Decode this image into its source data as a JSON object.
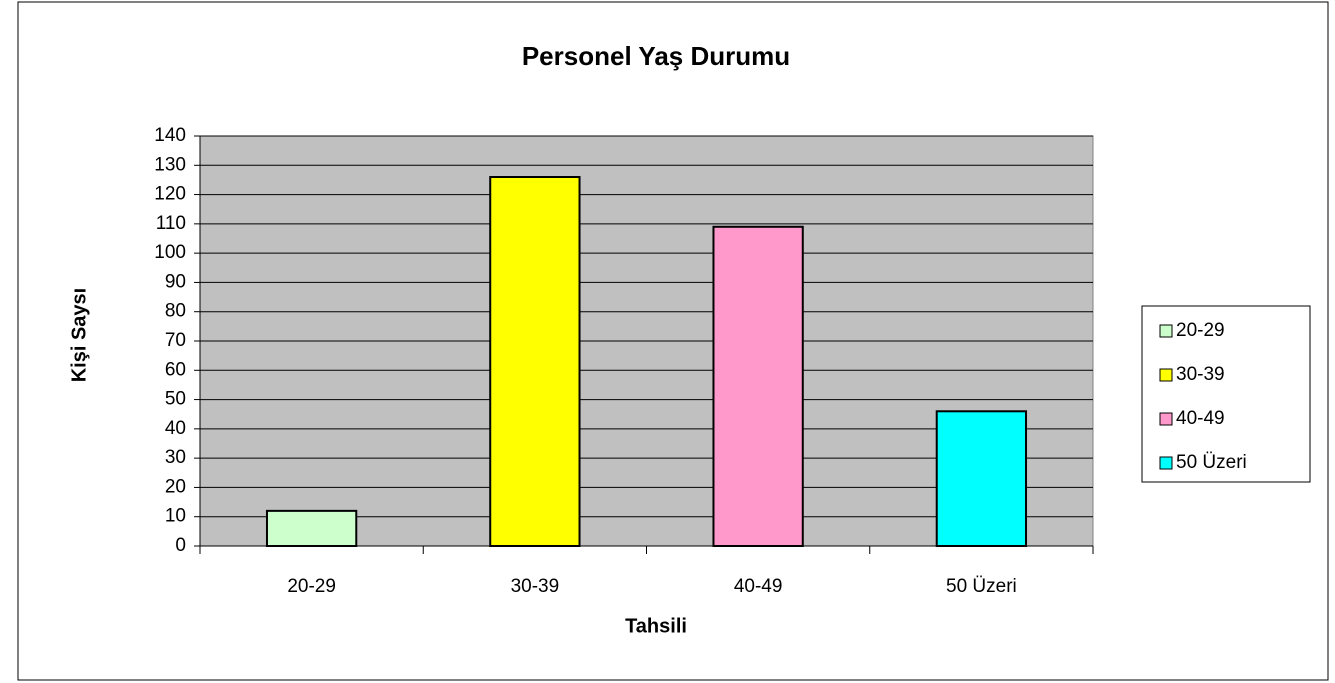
{
  "chart_data": {
    "type": "bar",
    "title": "Personel Yaş Durumu",
    "x_label": "Tahsili",
    "y_label": "Kişi Saysı",
    "categories": [
      "20-29",
      "30-39",
      "40-49",
      "50 Üzeri"
    ],
    "values": [
      12,
      126,
      109,
      46
    ],
    "colors": [
      "#ccffcc",
      "#ffff00",
      "#ff99cc",
      "#00ffff"
    ],
    "ylim": [
      0,
      140
    ],
    "yticks": [
      0,
      10,
      20,
      30,
      40,
      50,
      60,
      70,
      80,
      90,
      100,
      110,
      120,
      130,
      140
    ],
    "grid": true,
    "legend": "right"
  }
}
